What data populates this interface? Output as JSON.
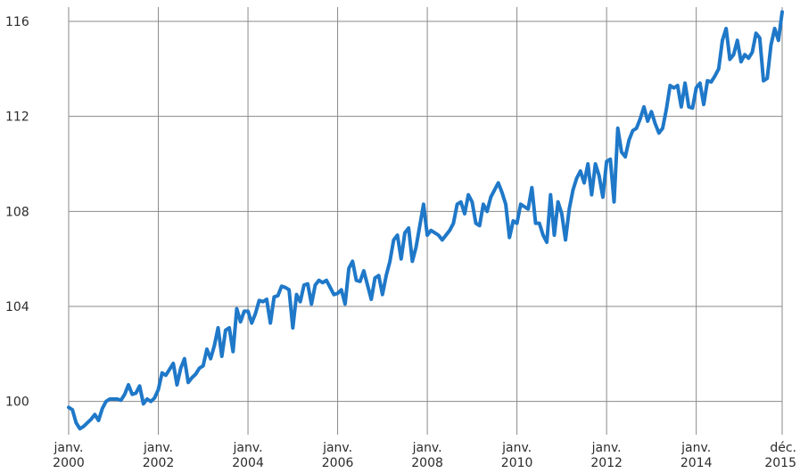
{
  "chart_data": {
    "type": "line",
    "title": "",
    "xlabel": "",
    "ylabel": "",
    "ylim": [
      98.6,
      116.6
    ],
    "xlim": [
      "2000-01",
      "2015-12"
    ],
    "y_ticks": [
      "100",
      "104",
      "108",
      "112",
      "116"
    ],
    "x_ticks": [
      {
        "line1": "janv.",
        "line2": "2000",
        "x": "2000-01"
      },
      {
        "line1": "janv.",
        "line2": "2002",
        "x": "2002-01"
      },
      {
        "line1": "janv.",
        "line2": "2004",
        "x": "2004-01"
      },
      {
        "line1": "janv.",
        "line2": "2006",
        "x": "2006-01"
      },
      {
        "line1": "janv.",
        "line2": "2008",
        "x": "2008-01"
      },
      {
        "line1": "janv.",
        "line2": "2010",
        "x": "2010-01"
      },
      {
        "line1": "janv.",
        "line2": "2012",
        "x": "2012-01"
      },
      {
        "line1": "janv.",
        "line2": "2014",
        "x": "2014-01"
      },
      {
        "line1": "déc.",
        "line2": "2015",
        "x": "2015-12"
      }
    ],
    "grid": true,
    "line_color": "#1f78c8",
    "grid_color": "#8a8a8a",
    "series": [
      {
        "x": [
          "2000-01",
          "2000-02",
          "2000-03",
          "2000-04",
          "2000-05",
          "2000-06",
          "2000-07",
          "2000-08",
          "2000-09",
          "2000-10",
          "2000-11",
          "2000-12",
          "2001-01",
          "2001-02",
          "2001-03",
          "2001-04",
          "2001-05",
          "2001-06",
          "2001-07",
          "2001-08",
          "2001-09",
          "2001-10",
          "2001-11",
          "2001-12",
          "2002-01",
          "2002-02",
          "2002-03",
          "2002-04",
          "2002-05",
          "2002-06",
          "2002-07",
          "2002-08",
          "2002-09",
          "2002-10",
          "2002-11",
          "2002-12",
          "2003-01",
          "2003-02",
          "2003-03",
          "2003-04",
          "2003-05",
          "2003-06",
          "2003-07",
          "2003-08",
          "2003-09",
          "2003-10",
          "2003-11",
          "2003-12",
          "2004-01",
          "2004-02",
          "2004-03",
          "2004-04",
          "2004-05",
          "2004-06",
          "2004-07",
          "2004-08",
          "2004-09",
          "2004-10",
          "2004-11",
          "2004-12",
          "2005-01",
          "2005-02",
          "2005-03",
          "2005-04",
          "2005-05",
          "2005-06",
          "2005-07",
          "2005-08",
          "2005-09",
          "2005-10",
          "2005-11",
          "2005-12",
          "2006-01",
          "2006-02",
          "2006-03",
          "2006-04",
          "2006-05",
          "2006-06",
          "2006-07",
          "2006-08",
          "2006-09",
          "2006-10",
          "2006-11",
          "2006-12",
          "2007-01",
          "2007-02",
          "2007-03",
          "2007-04",
          "2007-05",
          "2007-06",
          "2007-07",
          "2007-08",
          "2007-09",
          "2007-10",
          "2007-11",
          "2007-12",
          "2008-01",
          "2008-02",
          "2008-03",
          "2008-04",
          "2008-05",
          "2008-06",
          "2008-07",
          "2008-08",
          "2008-09",
          "2008-10",
          "2008-11",
          "2008-12",
          "2009-01",
          "2009-02",
          "2009-03",
          "2009-04",
          "2009-05",
          "2009-06",
          "2009-07",
          "2009-08",
          "2009-09",
          "2009-10",
          "2009-11",
          "2009-12",
          "2010-01",
          "2010-02",
          "2010-03",
          "2010-04",
          "2010-05",
          "2010-06",
          "2010-07",
          "2010-08",
          "2010-09",
          "2010-10",
          "2010-11",
          "2010-12",
          "2011-01",
          "2011-02",
          "2011-03",
          "2011-04",
          "2011-05",
          "2011-06",
          "2011-07",
          "2011-08",
          "2011-09",
          "2011-10",
          "2011-11",
          "2011-12",
          "2012-01",
          "2012-02",
          "2012-03",
          "2012-04",
          "2012-05",
          "2012-06",
          "2012-07",
          "2012-08",
          "2012-09",
          "2012-10",
          "2012-11",
          "2012-12",
          "2013-01",
          "2013-02",
          "2013-03",
          "2013-04",
          "2013-05",
          "2013-06",
          "2013-07",
          "2013-08",
          "2013-09",
          "2013-10",
          "2013-11",
          "2013-12",
          "2014-01",
          "2014-02",
          "2014-03",
          "2014-04",
          "2014-05",
          "2014-06",
          "2014-07",
          "2014-08",
          "2014-09",
          "2014-10",
          "2014-11",
          "2014-12",
          "2015-01",
          "2015-02",
          "2015-03",
          "2015-04",
          "2015-05",
          "2015-06",
          "2015-07",
          "2015-08",
          "2015-09",
          "2015-10",
          "2015-11",
          "2015-12"
        ],
        "values": [
          99.75,
          99.65,
          99.1,
          98.85,
          98.95,
          99.1,
          99.25,
          99.45,
          99.2,
          99.7,
          100.0,
          100.1,
          100.1,
          100.1,
          100.05,
          100.3,
          100.7,
          100.3,
          100.35,
          100.65,
          99.9,
          100.1,
          100.0,
          100.15,
          100.5,
          101.2,
          101.1,
          101.35,
          101.6,
          100.7,
          101.4,
          101.8,
          100.8,
          101.0,
          101.15,
          101.4,
          101.5,
          102.2,
          101.8,
          102.35,
          103.1,
          101.9,
          103.0,
          103.1,
          102.1,
          103.9,
          103.35,
          103.8,
          103.8,
          103.3,
          103.7,
          104.25,
          104.2,
          104.3,
          103.3,
          104.4,
          104.45,
          104.85,
          104.8,
          104.7,
          103.1,
          104.5,
          104.2,
          104.9,
          104.95,
          104.1,
          104.9,
          105.1,
          105.0,
          105.1,
          104.8,
          104.5,
          104.55,
          104.7,
          104.1,
          105.6,
          105.9,
          105.1,
          105.05,
          105.5,
          104.9,
          104.3,
          105.2,
          105.3,
          104.5,
          105.3,
          105.9,
          106.8,
          107.0,
          106.0,
          107.1,
          107.3,
          105.9,
          106.5,
          107.4,
          108.3,
          107.0,
          107.2,
          107.1,
          107.0,
          106.8,
          107.0,
          107.2,
          107.5,
          108.3,
          108.4,
          107.9,
          108.7,
          108.4,
          107.5,
          107.4,
          108.3,
          108.0,
          108.6,
          108.9,
          109.2,
          108.8,
          108.3,
          106.9,
          107.6,
          107.5,
          108.3,
          108.2,
          108.1,
          109.0,
          107.5,
          107.5,
          107.0,
          106.7,
          108.7,
          107.0,
          108.4,
          107.9,
          106.8,
          108.1,
          108.9,
          109.4,
          109.7,
          109.2,
          110.0,
          108.7,
          110.0,
          109.5,
          108.6,
          110.1,
          110.2,
          108.4,
          111.5,
          110.5,
          110.3,
          111.0,
          111.4,
          111.5,
          111.9,
          112.4,
          111.8,
          112.2,
          111.7,
          111.3,
          111.5,
          112.3,
          113.3,
          113.2,
          113.3,
          112.4,
          113.4,
          112.4,
          112.35,
          113.2,
          113.4,
          112.5,
          113.5,
          113.45,
          113.7,
          114.0,
          115.2,
          115.7,
          114.4,
          114.6,
          115.2,
          114.3,
          114.6,
          114.45,
          114.7,
          115.5,
          115.3,
          113.5,
          113.6,
          115.0,
          115.7,
          115.2,
          116.4
        ]
      }
    ]
  }
}
